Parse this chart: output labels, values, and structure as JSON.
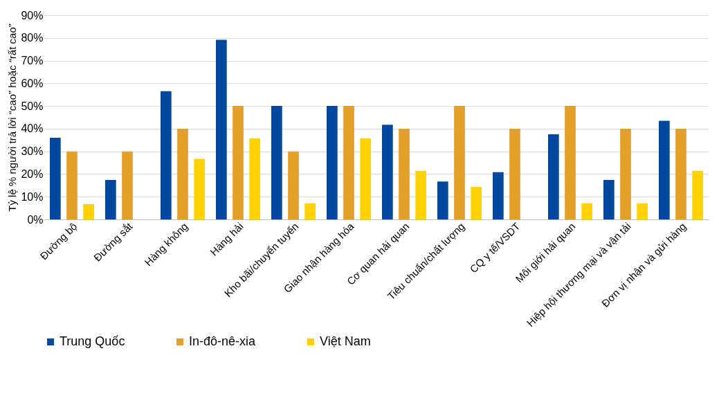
{
  "chart_data": {
    "type": "bar",
    "ylabel": "Tỷ lệ % người trả lời “cao” hoặc “rất cao”",
    "categories": [
      "Đường bộ",
      "Đường sắt",
      "Hàng không",
      "Hàng hải",
      "Kho bãi/chuyển tuyến",
      "Giao nhận hàng hóa",
      "Cơ quan hải quan",
      "Tiêu chuẩn/chất lượng",
      "CQ y tế/VSDT",
      "Môi giới hải quan",
      "Hiệp hội thương mại và vận tải",
      "Đơn vị nhận và gửi hàng"
    ],
    "series": [
      {
        "name": "Trung Quốc",
        "color": "#0047a0",
        "values": [
          36,
          17.4,
          56.5,
          79.2,
          50,
          50,
          41.7,
          16.7,
          20.8,
          37.5,
          17.4,
          43.5
        ]
      },
      {
        "name": "In-đô-nê-xia",
        "color": "#e5a02a",
        "values": [
          30,
          30,
          40,
          50,
          30,
          50,
          40,
          50,
          40,
          50,
          40,
          40
        ]
      },
      {
        "name": "Việt Nam",
        "color": "#ffd200",
        "values": [
          6.7,
          0,
          26.7,
          35.7,
          7.1,
          35.7,
          21.4,
          14.3,
          0,
          7.1,
          7.1,
          21.4
        ]
      }
    ],
    "ylim": [
      0,
      90
    ],
    "yticks": [
      {
        "value": 0,
        "label": "0%"
      },
      {
        "value": 10,
        "label": "10%"
      },
      {
        "value": 20,
        "label": "20%"
      },
      {
        "value": 30,
        "label": "30%"
      },
      {
        "value": 40,
        "label": "40%"
      },
      {
        "value": 50,
        "label": "50%"
      },
      {
        "value": 60,
        "label": "60%"
      },
      {
        "value": 70,
        "label": "70%"
      },
      {
        "value": 80,
        "label": "80%"
      },
      {
        "value": 90,
        "label": "90%"
      }
    ],
    "grid": "y",
    "legend": "bottom"
  }
}
